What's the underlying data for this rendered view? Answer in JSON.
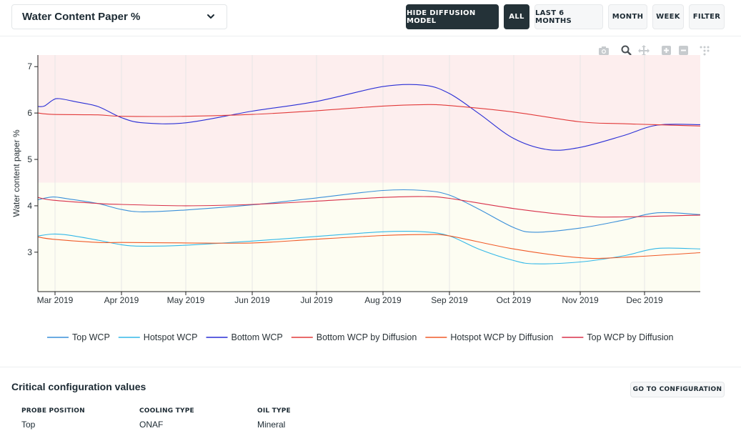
{
  "header": {
    "metric_select": {
      "value": "Water Content Paper %"
    },
    "buttons": {
      "hide_diffusion": "HIDE DIFFUSION MODEL",
      "all": "ALL",
      "last6": "LAST 6 MONTHS",
      "month": "MONTH",
      "week": "WEEK",
      "filter": "FILTER"
    }
  },
  "modebar": [
    "camera-icon",
    "zoom-icon",
    "pan-icon",
    "zoom-in-icon",
    "zoom-out-icon",
    "autoscale-icon"
  ],
  "chart_data": {
    "type": "line",
    "title": "",
    "xlabel": "",
    "ylabel": "Water content paper %",
    "ylim": [
      2.15,
      7.25
    ],
    "xlim": [
      "2019-02-21",
      "2019-12-27"
    ],
    "x_ticks": [
      "2019-03-01",
      "2019-04-01",
      "2019-05-01",
      "2019-06-01",
      "2019-07-01",
      "2019-08-01",
      "2019-09-01",
      "2019-10-01",
      "2019-11-01",
      "2019-12-01"
    ],
    "x_tick_labels": [
      "Mar 2019",
      "Apr 2019",
      "May 2019",
      "Jun 2019",
      "Jul 2019",
      "Aug 2019",
      "Sep 2019",
      "Oct 2019",
      "Nov 2019",
      "Dec 2019"
    ],
    "y_ticks": [
      3,
      4,
      5,
      6,
      7
    ],
    "bands": [
      {
        "from": 4.5,
        "to": 7.25,
        "color": "#fdeeee"
      },
      {
        "from": 2.15,
        "to": 4.5,
        "color": "#fdfdf2"
      }
    ],
    "grid": true,
    "legend_position": "bottom",
    "series": [
      {
        "name": "Top WCP",
        "color": "#3a8fd9",
        "x": [
          "2019-02-21",
          "2019-02-28",
          "2019-03-07",
          "2019-03-21",
          "2019-04-01",
          "2019-04-11",
          "2019-05-01",
          "2019-06-01",
          "2019-07-01",
          "2019-08-01",
          "2019-08-20",
          "2019-09-01",
          "2019-09-15",
          "2019-10-01",
          "2019-10-11",
          "2019-11-01",
          "2019-11-21",
          "2019-12-07",
          "2019-12-27"
        ],
        "y": [
          4.13,
          4.19,
          4.15,
          4.05,
          3.92,
          3.87,
          3.91,
          4.02,
          4.17,
          4.33,
          4.33,
          4.23,
          3.92,
          3.53,
          3.43,
          3.52,
          3.69,
          3.85,
          3.81
        ]
      },
      {
        "name": "Hotspot WCP",
        "color": "#33b8e8",
        "x": [
          "2019-02-21",
          "2019-02-28",
          "2019-03-07",
          "2019-03-21",
          "2019-04-01",
          "2019-04-11",
          "2019-05-01",
          "2019-06-01",
          "2019-07-01",
          "2019-08-01",
          "2019-08-20",
          "2019-09-01",
          "2019-09-15",
          "2019-10-01",
          "2019-10-11",
          "2019-11-01",
          "2019-11-21",
          "2019-12-07",
          "2019-12-27"
        ],
        "y": [
          3.35,
          3.39,
          3.37,
          3.26,
          3.16,
          3.13,
          3.15,
          3.24,
          3.34,
          3.44,
          3.44,
          3.35,
          3.06,
          2.82,
          2.75,
          2.79,
          2.92,
          3.08,
          3.07
        ]
      },
      {
        "name": "Bottom WCP",
        "color": "#2a2fd6",
        "x": [
          "2019-02-21",
          "2019-02-24",
          "2019-02-28",
          "2019-03-03",
          "2019-03-11",
          "2019-03-21",
          "2019-04-01",
          "2019-04-11",
          "2019-05-01",
          "2019-06-01",
          "2019-07-01",
          "2019-08-01",
          "2019-08-20",
          "2019-09-01",
          "2019-09-15",
          "2019-10-01",
          "2019-10-17",
          "2019-11-01",
          "2019-11-21",
          "2019-12-07",
          "2019-12-27"
        ],
        "y": [
          6.14,
          6.15,
          6.28,
          6.31,
          6.24,
          6.14,
          5.9,
          5.79,
          5.79,
          6.04,
          6.25,
          6.57,
          6.6,
          6.42,
          5.98,
          5.45,
          5.21,
          5.26,
          5.51,
          5.74,
          5.75
        ]
      },
      {
        "name": "Bottom WCP by Diffusion",
        "color": "#e23a3a",
        "x": [
          "2019-02-21",
          "2019-02-28",
          "2019-03-21",
          "2019-04-01",
          "2019-05-01",
          "2019-06-01",
          "2019-07-01",
          "2019-08-01",
          "2019-08-20",
          "2019-09-01",
          "2019-10-01",
          "2019-11-01",
          "2019-11-21",
          "2019-12-27"
        ],
        "y": [
          6.0,
          5.97,
          5.96,
          5.93,
          5.93,
          5.97,
          6.05,
          6.15,
          6.18,
          6.16,
          6.02,
          5.81,
          5.77,
          5.72
        ]
      },
      {
        "name": "Hotspot WCP by Diffusion",
        "color": "#f05a28",
        "x": [
          "2019-02-21",
          "2019-02-28",
          "2019-03-21",
          "2019-04-01",
          "2019-05-01",
          "2019-06-01",
          "2019-07-01",
          "2019-08-01",
          "2019-08-20",
          "2019-09-01",
          "2019-10-01",
          "2019-11-01",
          "2019-11-21",
          "2019-12-27"
        ],
        "y": [
          3.33,
          3.28,
          3.21,
          3.21,
          3.2,
          3.2,
          3.28,
          3.36,
          3.38,
          3.35,
          3.07,
          2.88,
          2.89,
          2.99
        ]
      },
      {
        "name": "Top WCP by Diffusion",
        "color": "#d8304a",
        "x": [
          "2019-02-21",
          "2019-02-28",
          "2019-03-21",
          "2019-04-01",
          "2019-05-01",
          "2019-06-01",
          "2019-07-01",
          "2019-08-01",
          "2019-08-20",
          "2019-09-01",
          "2019-10-01",
          "2019-11-01",
          "2019-11-21",
          "2019-12-27"
        ],
        "y": [
          4.18,
          4.12,
          4.05,
          4.03,
          4.0,
          4.03,
          4.1,
          4.18,
          4.2,
          4.16,
          3.94,
          3.78,
          3.76,
          3.8
        ]
      }
    ]
  },
  "config": {
    "title": "Critical configuration values",
    "goto_label": "GO TO CONFIGURATION",
    "items": [
      {
        "label": "PROBE POSITION",
        "value": "Top"
      },
      {
        "label": "COOLING TYPE",
        "value": "ONAF"
      },
      {
        "label": "OIL TYPE",
        "value": "Mineral"
      }
    ]
  }
}
